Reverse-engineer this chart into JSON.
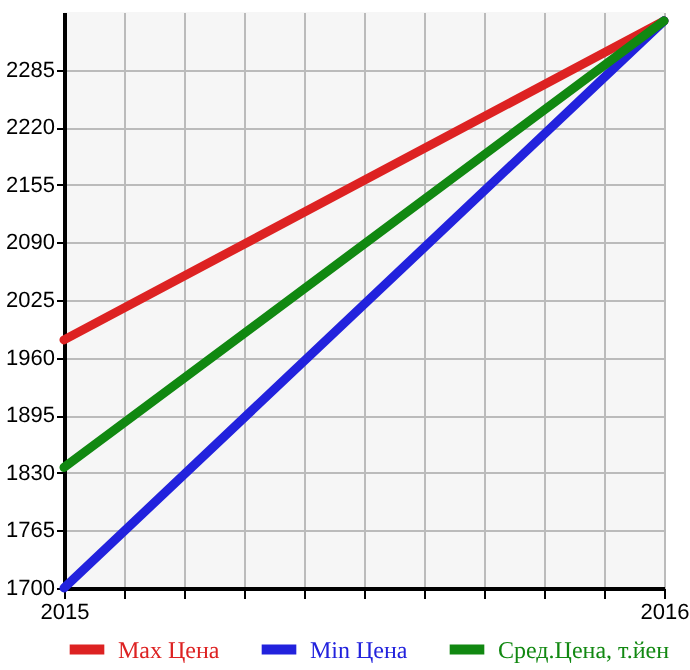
{
  "chart_data": {
    "type": "line",
    "x": [
      2015,
      2016
    ],
    "series": [
      {
        "name": "Max Цена",
        "color": "#dd2222",
        "values": [
          1980,
          2340
        ]
      },
      {
        "name": "Min Цена",
        "color": "#2222dd",
        "values": [
          1700,
          2340
        ]
      },
      {
        "name": "Сред.Цена, т.йен",
        "color": "#118811",
        "values": [
          1836,
          2340
        ]
      }
    ],
    "xlim": [
      2015,
      2016
    ],
    "xticks": [
      2015,
      {
        "value": 2015.1,
        "label": null
      },
      {
        "value": 2015.2,
        "label": null
      },
      {
        "value": 2015.3,
        "label": null
      },
      {
        "value": 2015.4,
        "label": null
      },
      {
        "value": 2015.5,
        "label": null
      },
      {
        "value": 2015.6,
        "label": null
      },
      {
        "value": 2015.7,
        "label": null
      },
      {
        "value": 2015.8,
        "label": null
      },
      {
        "value": 2015.9,
        "label": null
      },
      2016
    ],
    "ylim": [
      1700,
      2350
    ],
    "yticks": [
      1700,
      1765,
      1830,
      1895,
      1960,
      2025,
      2090,
      2155,
      2220,
      2285
    ],
    "grid": true,
    "legend": "bottom",
    "marker": "none",
    "line_style": "solid"
  }
}
